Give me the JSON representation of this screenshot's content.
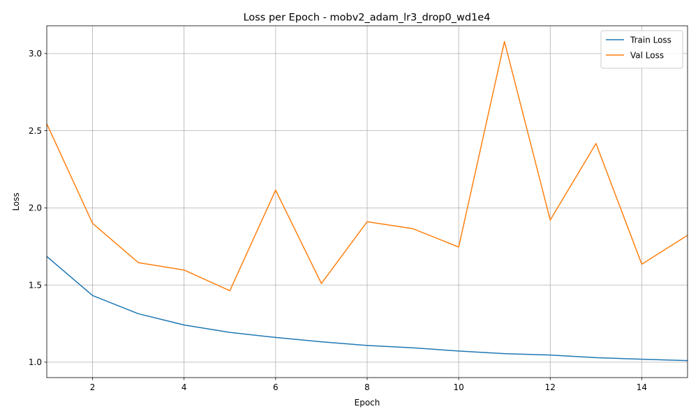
{
  "chart_data": {
    "type": "line",
    "title": "Loss per Epoch - mobv2_adam_lr3_drop0_wd1e4",
    "xlabel": "Epoch",
    "ylabel": "Loss",
    "xlim": [
      1,
      15
    ],
    "ylim": [
      0.9,
      3.18
    ],
    "xticks": [
      2,
      4,
      6,
      8,
      10,
      12,
      14
    ],
    "yticks": [
      1.0,
      1.5,
      2.0,
      2.5,
      3.0
    ],
    "ytick_labels": [
      "1.0",
      "1.5",
      "2.0",
      "2.5",
      "3.0"
    ],
    "grid": true,
    "legend_position": "top-right",
    "x": [
      1,
      2,
      3,
      4,
      5,
      6,
      7,
      8,
      9,
      10,
      11,
      12,
      13,
      14,
      15
    ],
    "series": [
      {
        "name": "Train Loss",
        "color": "#1f77b4",
        "values": [
          1.685,
          1.432,
          1.314,
          1.241,
          1.193,
          1.16,
          1.132,
          1.108,
          1.093,
          1.072,
          1.055,
          1.046,
          1.029,
          1.019,
          1.01
        ]
      },
      {
        "name": "Val Loss",
        "color": "#ff7f0e",
        "values": [
          2.545,
          1.9,
          1.645,
          1.597,
          1.463,
          2.115,
          1.51,
          1.91,
          1.865,
          1.746,
          3.078,
          1.921,
          2.417,
          1.635,
          1.822
        ]
      }
    ]
  }
}
